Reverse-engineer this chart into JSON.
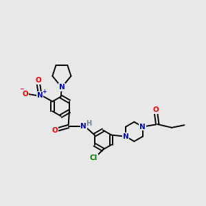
{
  "background_color": "#e8e8e8",
  "bond_color": "#000000",
  "atom_colors": {
    "N": "#0000cd",
    "O": "#ff0000",
    "Cl": "#008000",
    "H": "#708090",
    "C": "#000000"
  },
  "figsize": [
    3.0,
    3.0
  ],
  "dpi": 100,
  "lw": 1.4,
  "fs": 7.5
}
